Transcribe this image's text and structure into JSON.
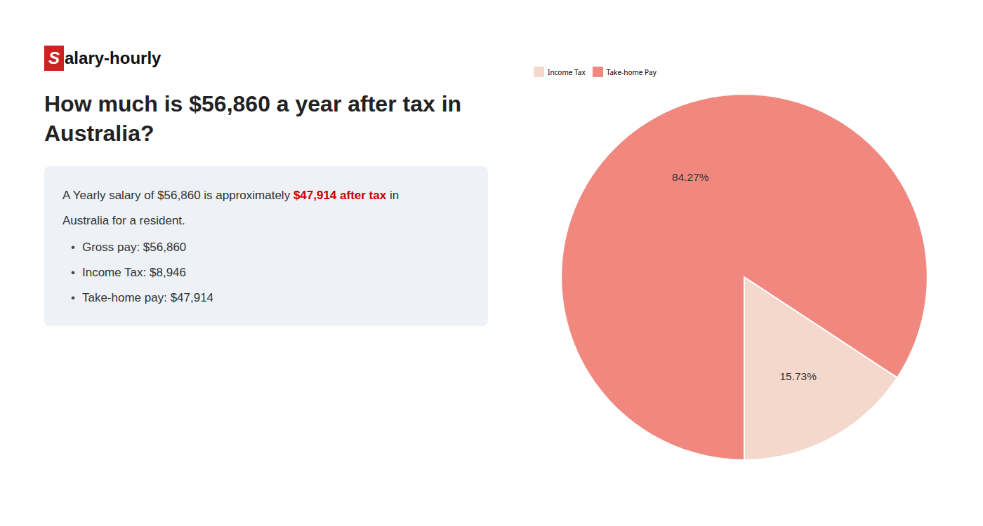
{
  "chart_data": {
    "type": "pie",
    "title": "How much is $56,860 a year after tax in Australia?",
    "categories": [
      "Income Tax",
      "Take-home Pay"
    ],
    "values": [
      15.73,
      84.27
    ],
    "value_labels": [
      "15.73%",
      "84.27%"
    ],
    "colors": [
      "#f5d8cc",
      "#f08880"
    ],
    "data_labels": true,
    "legend": "top",
    "annotations": [
      [
        {
          "text": "S",
          "color": "#ffffff",
          "background": "#cc2222"
        },
        {
          "text": "alary-hourly",
          "color": "#111111"
        }
      ],
      [
        {
          "text": "A Yearly salary of $56,860 is approximately ",
          "color": "#333333"
        },
        {
          "text": "$47,914 after tax",
          "color": "#cc0000",
          "bold": true
        },
        {
          "text": " in",
          "color": "#333333"
        }
      ],
      [
        {
          "text": "Australia for a resident.",
          "color": "#333333"
        }
      ],
      [
        {
          "text": "•",
          "color": "#444444"
        },
        {
          "text": "Gross pay: $56,860",
          "color": "#333333"
        }
      ],
      [
        {
          "text": "•",
          "color": "#444444"
        },
        {
          "text": "Income Tax: $8,946",
          "color": "#333333"
        }
      ],
      [
        {
          "text": "•",
          "color": "#444444"
        },
        {
          "text": "Take-home pay: $47,914",
          "color": "#333333"
        }
      ]
    ]
  }
}
